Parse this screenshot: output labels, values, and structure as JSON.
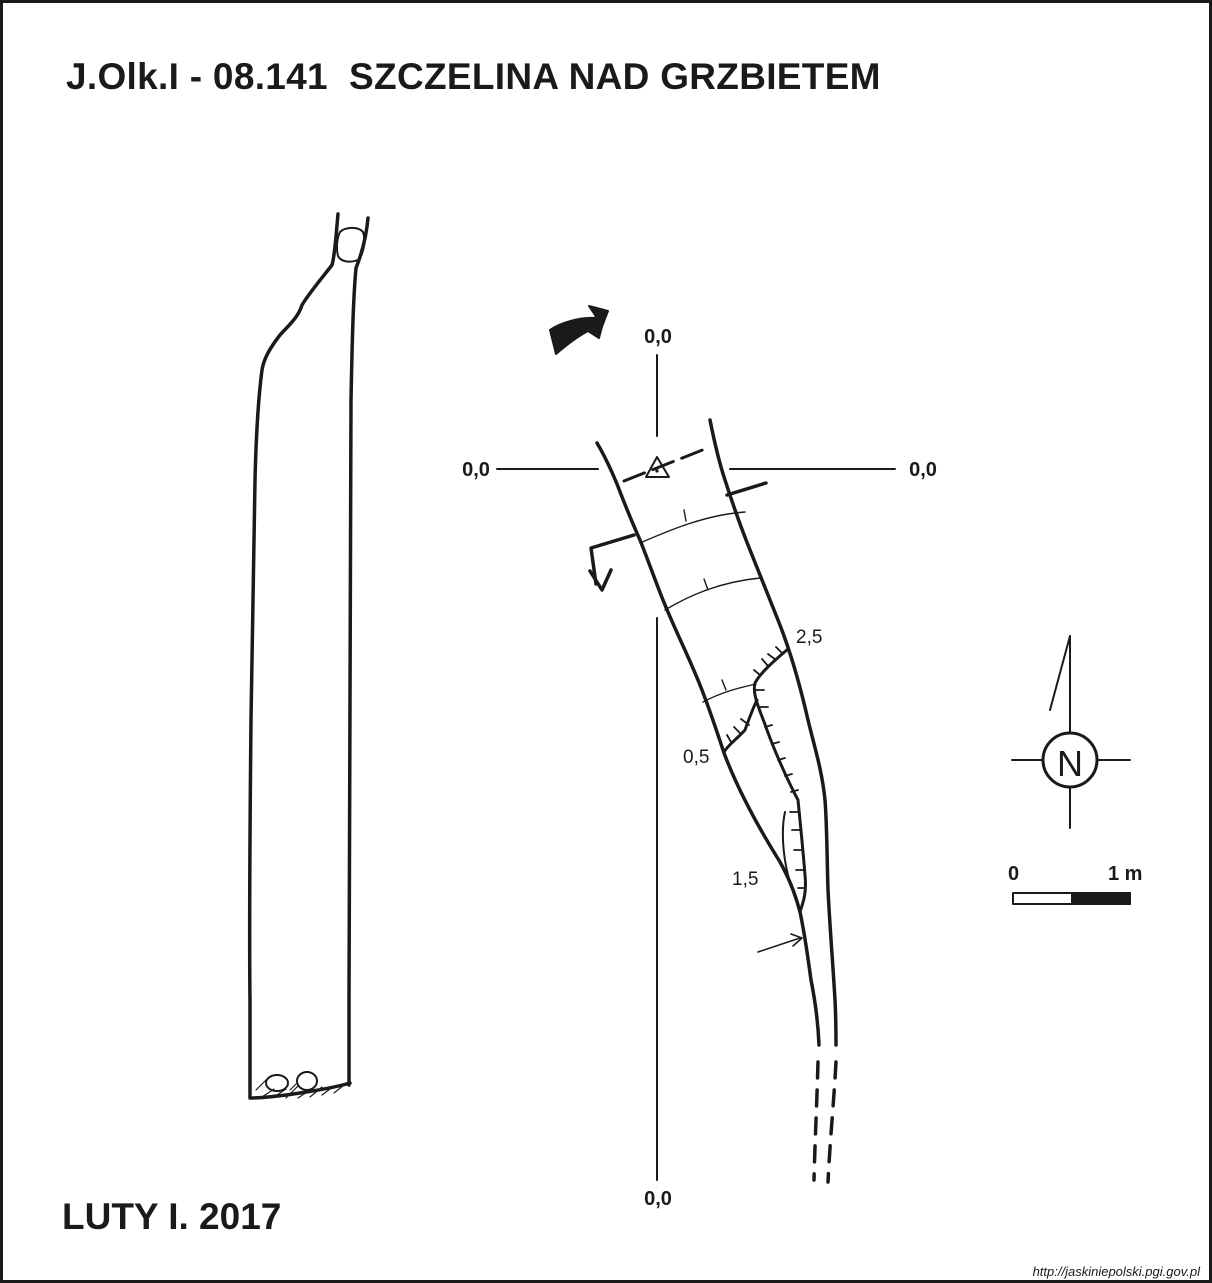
{
  "title": "J.Olk.I - 08.141  SZCZELINA NAD GRZBIETEM",
  "date": "LUTY I. 2017",
  "url": "http://jaskiniepolski.pgi.gov.pl",
  "section_labels": {
    "top": "0,0",
    "left": "0,0",
    "right": "0,0",
    "bottom": "0,0"
  },
  "depth_labels": {
    "d1": "2,5",
    "d2": "0,5",
    "d3": "1,5"
  },
  "north_arrow": {
    "letter": "N"
  },
  "scale_bar": {
    "start": "0",
    "end": "1 m"
  },
  "colors": {
    "ink": "#1a1a1a",
    "background": "#ffffff"
  }
}
